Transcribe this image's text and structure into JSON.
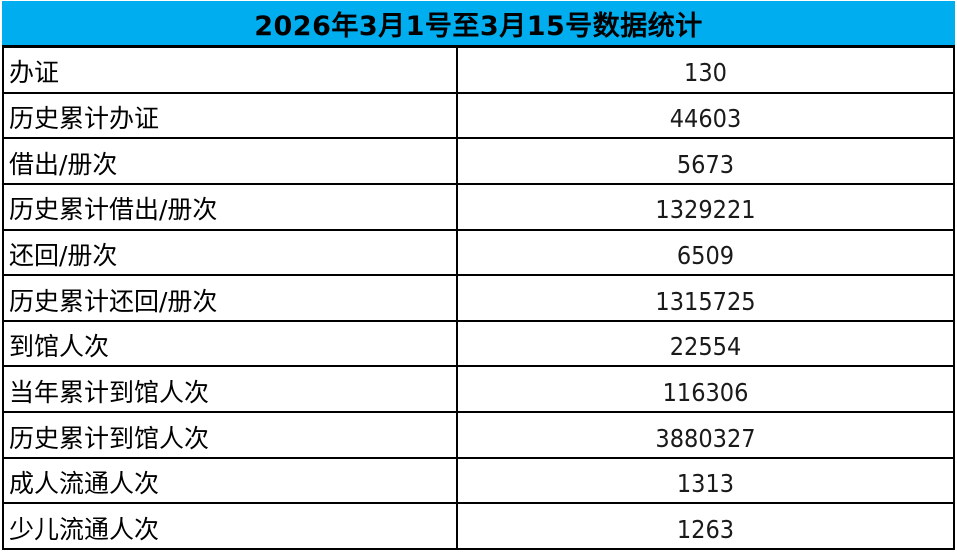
{
  "title": "2026年3月1号至3月15号数据统计",
  "colors": {
    "header_bg": "#00AEF0",
    "border": "#000000",
    "text": "#000000"
  },
  "table": {
    "rows": [
      {
        "label": "办证",
        "value": "130"
      },
      {
        "label": "历史累计办证",
        "value": "44603"
      },
      {
        "label": "借出/册次",
        "value": "5673"
      },
      {
        "label": "历史累计借出/册次",
        "value": "1329221"
      },
      {
        "label": "还回/册次",
        "value": "6509"
      },
      {
        "label": "历史累计还回/册次",
        "value": "1315725"
      },
      {
        "label": "到馆人次",
        "value": "22554"
      },
      {
        "label": "当年累计到馆人次",
        "value": "116306"
      },
      {
        "label": "历史累计到馆人次",
        "value": "3880327"
      },
      {
        "label": "成人流通人次",
        "value": "1313"
      },
      {
        "label": "少儿流通人次",
        "value": "1263"
      }
    ]
  }
}
